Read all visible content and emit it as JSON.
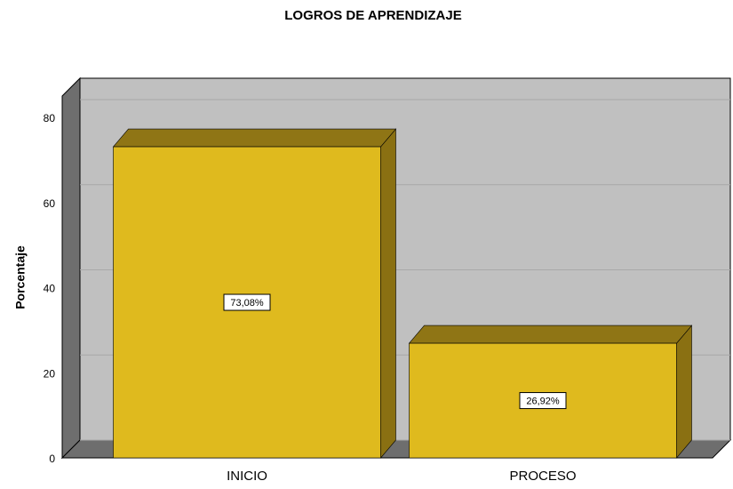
{
  "chart_data": {
    "type": "bar3d",
    "title": "LOGROS DE APRENDIZAJE",
    "y_label": "Porcentaje",
    "categories": [
      "INICIO",
      "PROCESO"
    ],
    "values": [
      73.08,
      26.92
    ],
    "value_labels": [
      "73,08%",
      "26,92%"
    ],
    "color": "#dfba1e",
    "ylim": [
      0,
      85
    ],
    "yticks": [
      0,
      20,
      40,
      60,
      80
    ],
    "grid": true
  }
}
